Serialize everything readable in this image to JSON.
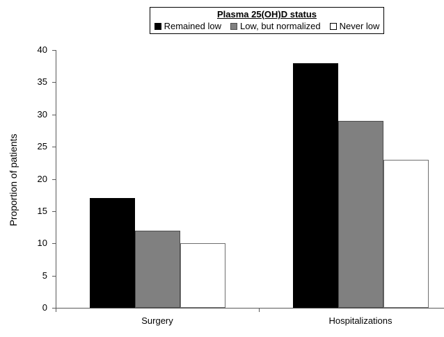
{
  "chart_data": {
    "type": "bar",
    "title": "",
    "legend_title": "Plasma 25(OH)D status",
    "legend_position": "top-center",
    "categories": [
      "Surgery",
      "Hospitalizations"
    ],
    "series": [
      {
        "name": "Remained low",
        "values": [
          17,
          38
        ],
        "fill": "#000000",
        "border": "#000000"
      },
      {
        "name": "Low, but normalized",
        "values": [
          12,
          29
        ],
        "fill": "#808080",
        "border": "#4d4d4d"
      },
      {
        "name": "Never low",
        "values": [
          10,
          23
        ],
        "fill": "#ffffff",
        "border": "#6e6e6e"
      }
    ],
    "xlabel": "",
    "ylabel": "Proportion of patients",
    "ylim": [
      0,
      40
    ],
    "ytick_step": 5,
    "yticks": [
      0,
      5,
      10,
      15,
      20,
      25,
      30,
      35,
      40
    ],
    "grid": false
  }
}
